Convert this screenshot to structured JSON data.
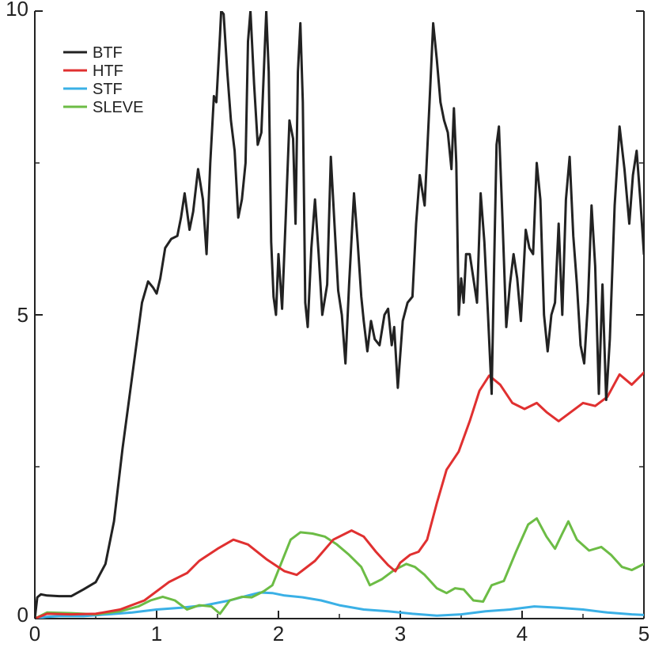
{
  "chart_data": {
    "type": "line",
    "title": "",
    "xlabel": "",
    "ylabel": "",
    "xlim": [
      0,
      5
    ],
    "ylim": [
      0,
      10
    ],
    "x_ticks": [
      0,
      1,
      2,
      3,
      4,
      5
    ],
    "x_tick_labels": [
      "0",
      "1",
      "2",
      "3",
      "4",
      "5"
    ],
    "y_ticks": [
      0,
      5,
      10
    ],
    "y_tick_labels": [
      "0",
      "5",
      "10"
    ],
    "grid": false,
    "legend_position": "top-left",
    "series": [
      {
        "name": "BTF",
        "color": "#222222",
        "points": [
          [
            0,
            0
          ],
          [
            0.02,
            0.35
          ],
          [
            0.05,
            0.4
          ],
          [
            0.1,
            0.38
          ],
          [
            0.2,
            0.37
          ],
          [
            0.3,
            0.37
          ],
          [
            0.4,
            0.48
          ],
          [
            0.5,
            0.6
          ],
          [
            0.58,
            0.9
          ],
          [
            0.65,
            1.6
          ],
          [
            0.72,
            2.8
          ],
          [
            0.8,
            4.0
          ],
          [
            0.88,
            5.2
          ],
          [
            0.93,
            5.55
          ],
          [
            0.97,
            5.45
          ],
          [
            1.0,
            5.35
          ],
          [
            1.03,
            5.6
          ],
          [
            1.07,
            6.1
          ],
          [
            1.12,
            6.25
          ],
          [
            1.17,
            6.3
          ],
          [
            1.2,
            6.6
          ],
          [
            1.23,
            7.0
          ],
          [
            1.27,
            6.4
          ],
          [
            1.3,
            6.7
          ],
          [
            1.34,
            7.4
          ],
          [
            1.38,
            6.9
          ],
          [
            1.41,
            6.0
          ],
          [
            1.44,
            7.5
          ],
          [
            1.47,
            8.6
          ],
          [
            1.49,
            8.5
          ],
          [
            1.52,
            9.6
          ],
          [
            1.53,
            10.0
          ],
          [
            1.55,
            9.95
          ],
          [
            1.58,
            9.0
          ],
          [
            1.61,
            8.2
          ],
          [
            1.64,
            7.7
          ],
          [
            1.67,
            6.6
          ],
          [
            1.7,
            6.9
          ],
          [
            1.73,
            7.5
          ],
          [
            1.75,
            9.5
          ],
          [
            1.77,
            10.0
          ],
          [
            1.8,
            8.8
          ],
          [
            1.83,
            7.8
          ],
          [
            1.86,
            8.0
          ],
          [
            1.88,
            9.0
          ],
          [
            1.9,
            10.0
          ],
          [
            1.92,
            9.0
          ],
          [
            1.94,
            6.2
          ],
          [
            1.96,
            5.3
          ],
          [
            1.98,
            5.0
          ],
          [
            2.0,
            6.0
          ],
          [
            2.03,
            5.1
          ],
          [
            2.06,
            6.6
          ],
          [
            2.09,
            8.2
          ],
          [
            2.12,
            7.9
          ],
          [
            2.14,
            6.5
          ],
          [
            2.16,
            9.0
          ],
          [
            2.18,
            9.8
          ],
          [
            2.2,
            8.5
          ],
          [
            2.22,
            5.2
          ],
          [
            2.24,
            4.8
          ],
          [
            2.27,
            6.1
          ],
          [
            2.3,
            6.9
          ],
          [
            2.33,
            6.0
          ],
          [
            2.36,
            5.0
          ],
          [
            2.4,
            5.5
          ],
          [
            2.43,
            7.6
          ],
          [
            2.46,
            6.5
          ],
          [
            2.49,
            5.4
          ],
          [
            2.52,
            5.0
          ],
          [
            2.55,
            4.2
          ],
          [
            2.58,
            5.5
          ],
          [
            2.62,
            7.0
          ],
          [
            2.65,
            6.2
          ],
          [
            2.68,
            5.3
          ],
          [
            2.7,
            4.9
          ],
          [
            2.73,
            4.4
          ],
          [
            2.76,
            4.9
          ],
          [
            2.79,
            4.6
          ],
          [
            2.83,
            4.5
          ],
          [
            2.87,
            5.0
          ],
          [
            2.9,
            5.1
          ],
          [
            2.93,
            4.5
          ],
          [
            2.95,
            4.8
          ],
          [
            2.98,
            3.8
          ],
          [
            3.02,
            4.9
          ],
          [
            3.06,
            5.2
          ],
          [
            3.1,
            5.3
          ],
          [
            3.13,
            6.5
          ],
          [
            3.16,
            7.3
          ],
          [
            3.2,
            6.8
          ],
          [
            3.24,
            8.5
          ],
          [
            3.27,
            9.8
          ],
          [
            3.3,
            9.2
          ],
          [
            3.33,
            8.5
          ],
          [
            3.36,
            8.2
          ],
          [
            3.39,
            8.0
          ],
          [
            3.42,
            7.4
          ],
          [
            3.44,
            8.4
          ],
          [
            3.46,
            7.5
          ],
          [
            3.48,
            5.0
          ],
          [
            3.5,
            5.6
          ],
          [
            3.52,
            5.2
          ],
          [
            3.54,
            6.0
          ],
          [
            3.57,
            6.0
          ],
          [
            3.6,
            5.6
          ],
          [
            3.63,
            5.2
          ],
          [
            3.66,
            7.0
          ],
          [
            3.69,
            6.2
          ],
          [
            3.72,
            5.0
          ],
          [
            3.75,
            3.7
          ],
          [
            3.77,
            5.8
          ],
          [
            3.79,
            7.8
          ],
          [
            3.81,
            8.1
          ],
          [
            3.84,
            6.5
          ],
          [
            3.87,
            4.8
          ],
          [
            3.9,
            5.5
          ],
          [
            3.93,
            6.0
          ],
          [
            3.96,
            5.6
          ],
          [
            3.99,
            4.9
          ],
          [
            4.03,
            6.4
          ],
          [
            4.06,
            6.1
          ],
          [
            4.09,
            6.0
          ],
          [
            4.12,
            7.5
          ],
          [
            4.15,
            6.9
          ],
          [
            4.18,
            5.0
          ],
          [
            4.21,
            4.4
          ],
          [
            4.24,
            5.0
          ],
          [
            4.27,
            5.2
          ],
          [
            4.3,
            6.5
          ],
          [
            4.33,
            5.0
          ],
          [
            4.36,
            6.9
          ],
          [
            4.39,
            7.6
          ],
          [
            4.42,
            6.3
          ],
          [
            4.45,
            5.5
          ],
          [
            4.48,
            4.5
          ],
          [
            4.51,
            4.2
          ],
          [
            4.54,
            5.2
          ],
          [
            4.57,
            6.8
          ],
          [
            4.6,
            5.8
          ],
          [
            4.63,
            3.7
          ],
          [
            4.66,
            5.5
          ],
          [
            4.69,
            3.6
          ],
          [
            4.72,
            4.6
          ],
          [
            4.76,
            6.8
          ],
          [
            4.8,
            8.1
          ],
          [
            4.84,
            7.4
          ],
          [
            4.88,
            6.5
          ],
          [
            4.91,
            7.3
          ],
          [
            4.94,
            7.7
          ],
          [
            4.97,
            6.9
          ],
          [
            5.0,
            6.0
          ]
        ]
      },
      {
        "name": "HTF",
        "color": "#e03030",
        "points": [
          [
            0,
            0
          ],
          [
            0.1,
            0.08
          ],
          [
            0.3,
            0.07
          ],
          [
            0.5,
            0.08
          ],
          [
            0.7,
            0.15
          ],
          [
            0.9,
            0.3
          ],
          [
            1.1,
            0.6
          ],
          [
            1.2,
            0.7
          ],
          [
            1.25,
            0.75
          ],
          [
            1.35,
            0.95
          ],
          [
            1.5,
            1.15
          ],
          [
            1.63,
            1.3
          ],
          [
            1.75,
            1.22
          ],
          [
            1.9,
            0.98
          ],
          [
            2.05,
            0.78
          ],
          [
            2.15,
            0.72
          ],
          [
            2.3,
            0.95
          ],
          [
            2.45,
            1.3
          ],
          [
            2.6,
            1.45
          ],
          [
            2.7,
            1.35
          ],
          [
            2.8,
            1.1
          ],
          [
            2.9,
            0.88
          ],
          [
            2.96,
            0.78
          ],
          [
            3.0,
            0.92
          ],
          [
            3.08,
            1.05
          ],
          [
            3.15,
            1.1
          ],
          [
            3.22,
            1.3
          ],
          [
            3.3,
            1.9
          ],
          [
            3.38,
            2.45
          ],
          [
            3.48,
            2.75
          ],
          [
            3.57,
            3.25
          ],
          [
            3.65,
            3.75
          ],
          [
            3.73,
            4.0
          ],
          [
            3.82,
            3.85
          ],
          [
            3.92,
            3.55
          ],
          [
            4.02,
            3.45
          ],
          [
            4.12,
            3.55
          ],
          [
            4.2,
            3.4
          ],
          [
            4.3,
            3.25
          ],
          [
            4.4,
            3.4
          ],
          [
            4.5,
            3.55
          ],
          [
            4.6,
            3.5
          ],
          [
            4.7,
            3.65
          ],
          [
            4.8,
            4.02
          ],
          [
            4.9,
            3.85
          ],
          [
            5.0,
            4.05
          ]
        ]
      },
      {
        "name": "STF",
        "color": "#3ab0e6",
        "points": [
          [
            0,
            0
          ],
          [
            0.1,
            0.03
          ],
          [
            0.2,
            0.04
          ],
          [
            0.4,
            0.04
          ],
          [
            0.6,
            0.07
          ],
          [
            0.8,
            0.1
          ],
          [
            1.0,
            0.15
          ],
          [
            1.2,
            0.18
          ],
          [
            1.4,
            0.22
          ],
          [
            1.6,
            0.3
          ],
          [
            1.75,
            0.38
          ],
          [
            1.85,
            0.43
          ],
          [
            1.95,
            0.42
          ],
          [
            2.05,
            0.38
          ],
          [
            2.2,
            0.35
          ],
          [
            2.35,
            0.3
          ],
          [
            2.5,
            0.22
          ],
          [
            2.7,
            0.15
          ],
          [
            2.9,
            0.12
          ],
          [
            3.1,
            0.08
          ],
          [
            3.3,
            0.05
          ],
          [
            3.5,
            0.07
          ],
          [
            3.7,
            0.12
          ],
          [
            3.9,
            0.15
          ],
          [
            4.1,
            0.2
          ],
          [
            4.3,
            0.18
          ],
          [
            4.5,
            0.15
          ],
          [
            4.7,
            0.1
          ],
          [
            4.9,
            0.07
          ],
          [
            5.0,
            0.06
          ]
        ]
      },
      {
        "name": "SLEVE",
        "color": "#6cbc45",
        "points": [
          [
            0,
            0
          ],
          [
            0.1,
            0.1
          ],
          [
            0.3,
            0.09
          ],
          [
            0.5,
            0.07
          ],
          [
            0.7,
            0.12
          ],
          [
            0.85,
            0.2
          ],
          [
            0.95,
            0.3
          ],
          [
            1.05,
            0.36
          ],
          [
            1.15,
            0.3
          ],
          [
            1.25,
            0.15
          ],
          [
            1.35,
            0.22
          ],
          [
            1.45,
            0.2
          ],
          [
            1.52,
            0.08
          ],
          [
            1.6,
            0.3
          ],
          [
            1.7,
            0.36
          ],
          [
            1.78,
            0.35
          ],
          [
            1.88,
            0.45
          ],
          [
            1.95,
            0.55
          ],
          [
            2.02,
            0.9
          ],
          [
            2.1,
            1.3
          ],
          [
            2.18,
            1.42
          ],
          [
            2.28,
            1.4
          ],
          [
            2.38,
            1.35
          ],
          [
            2.48,
            1.22
          ],
          [
            2.58,
            1.05
          ],
          [
            2.68,
            0.85
          ],
          [
            2.75,
            0.55
          ],
          [
            2.85,
            0.65
          ],
          [
            2.95,
            0.8
          ],
          [
            3.05,
            0.9
          ],
          [
            3.12,
            0.85
          ],
          [
            3.2,
            0.72
          ],
          [
            3.3,
            0.5
          ],
          [
            3.38,
            0.42
          ],
          [
            3.45,
            0.5
          ],
          [
            3.52,
            0.48
          ],
          [
            3.6,
            0.3
          ],
          [
            3.68,
            0.28
          ],
          [
            3.75,
            0.55
          ],
          [
            3.85,
            0.62
          ],
          [
            3.95,
            1.1
          ],
          [
            4.05,
            1.55
          ],
          [
            4.12,
            1.65
          ],
          [
            4.2,
            1.35
          ],
          [
            4.27,
            1.15
          ],
          [
            4.33,
            1.4
          ],
          [
            4.38,
            1.6
          ],
          [
            4.45,
            1.3
          ],
          [
            4.55,
            1.12
          ],
          [
            4.65,
            1.18
          ],
          [
            4.73,
            1.05
          ],
          [
            4.82,
            0.85
          ],
          [
            4.9,
            0.8
          ],
          [
            5.0,
            0.9
          ]
        ]
      }
    ]
  }
}
